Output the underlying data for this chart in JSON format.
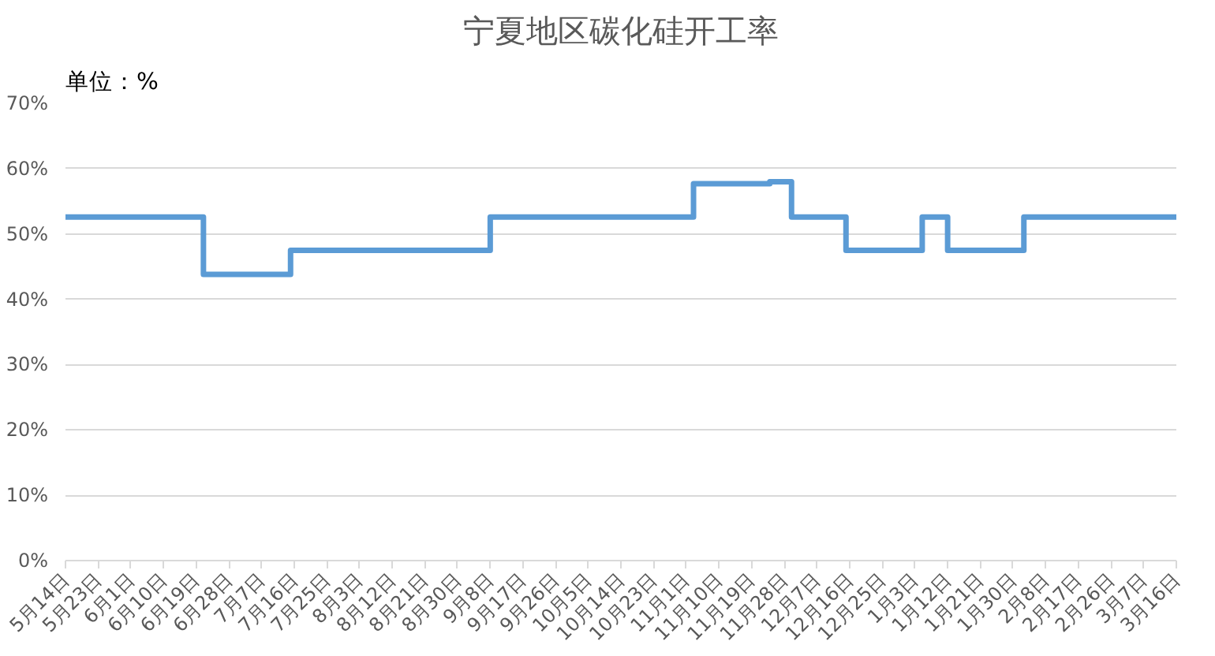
{
  "chart_data": {
    "type": "step",
    "title": "宁夏地区碳化硅开工率",
    "annotations": [
      "单位：%"
    ],
    "categories": [
      "5月14日",
      null,
      null,
      null,
      null,
      null,
      null,
      null,
      null,
      "5月23日",
      null,
      null,
      null,
      null,
      null,
      null,
      null,
      null,
      "6月1日",
      null,
      null,
      null,
      null,
      null,
      null,
      null,
      null,
      "6月10日",
      null,
      null,
      null,
      null,
      null,
      null,
      null,
      null,
      "6月19日",
      null,
      null,
      null,
      null,
      null,
      null,
      null,
      null,
      "6月28日",
      null,
      null,
      null,
      null,
      null,
      null,
      null,
      null,
      "7月7日",
      null,
      null,
      null,
      null,
      null,
      null,
      null,
      null,
      "7月16日",
      null,
      null,
      null,
      null,
      null,
      null,
      null,
      null,
      "7月25日",
      null,
      null,
      null,
      null,
      null,
      null,
      null,
      null,
      "8月3日",
      null,
      null,
      null,
      null,
      null,
      null,
      null,
      null,
      "8月12日",
      null,
      null,
      null,
      null,
      null,
      null,
      null,
      null,
      "8月21日",
      null,
      null,
      null,
      null,
      null,
      null,
      null,
      null,
      "8月30日",
      null,
      null,
      null,
      null,
      null,
      null,
      null,
      null,
      "9月8日",
      null,
      null,
      null,
      null,
      null,
      null,
      null,
      null,
      "9月17日",
      null,
      null,
      null,
      null,
      null,
      null,
      null,
      null,
      "9月26日",
      null,
      null,
      null,
      null,
      null,
      null,
      null,
      null,
      "10月5日",
      null,
      null,
      null,
      null,
      null,
      null,
      null,
      null,
      "10月14日",
      null,
      null,
      null,
      null,
      null,
      null,
      null,
      null,
      "10月23日",
      null,
      null,
      null,
      null,
      null,
      null,
      null,
      null,
      "11月1日",
      null,
      null,
      null,
      null,
      null,
      null,
      null,
      null,
      "11月10日",
      null,
      null,
      null,
      null,
      null,
      null,
      null,
      null,
      "11月19日",
      null,
      null,
      null,
      null,
      null,
      null,
      null,
      null,
      "11月28日",
      null,
      null,
      null,
      null,
      null,
      null,
      null,
      null,
      "12月7日",
      null,
      null,
      null,
      null,
      null,
      null,
      null,
      null,
      "12月16日",
      null,
      null,
      null,
      null,
      null,
      null,
      null,
      null,
      "12月25日",
      null,
      null,
      null,
      null,
      null,
      null,
      null,
      null,
      "1月3日",
      null,
      null,
      null,
      null,
      null,
      null,
      null,
      null,
      "1月12日",
      null,
      null,
      null,
      null,
      null,
      null,
      null,
      null,
      "1月21日",
      null,
      null,
      null,
      null,
      null,
      null,
      null,
      null,
      "1月30日",
      null,
      null,
      null,
      null,
      null,
      null,
      null,
      null,
      "2月8日",
      null,
      null,
      null,
      null,
      null,
      null,
      null,
      null,
      "2月17日",
      null,
      null,
      null,
      null,
      null,
      null,
      null,
      null,
      "2月26日",
      null,
      null,
      null,
      null,
      null,
      null,
      null,
      null,
      "3月7日",
      null,
      null,
      null,
      null,
      null,
      null,
      null,
      null,
      "3月16日"
    ],
    "series": [
      {
        "color": "#5b9bd5",
        "values": [
          52.6,
          52.6,
          52.6,
          52.6,
          52.6,
          52.6,
          52.6,
          52.6,
          52.6,
          52.6,
          52.6,
          52.6,
          52.6,
          52.6,
          52.6,
          52.6,
          52.6,
          52.6,
          52.6,
          52.6,
          52.6,
          52.6,
          52.6,
          52.6,
          52.6,
          52.6,
          52.6,
          52.6,
          52.6,
          52.6,
          52.6,
          52.6,
          52.6,
          52.6,
          52.6,
          52.6,
          52.6,
          52.6,
          43.8,
          43.8,
          43.8,
          43.8,
          43.8,
          43.8,
          43.8,
          43.8,
          43.8,
          43.8,
          43.8,
          43.8,
          43.8,
          43.8,
          43.8,
          43.8,
          43.8,
          43.8,
          43.8,
          43.8,
          43.8,
          43.8,
          43.8,
          43.8,
          47.5,
          47.5,
          47.5,
          47.5,
          47.5,
          47.5,
          47.5,
          47.5,
          47.5,
          47.5,
          47.5,
          47.5,
          47.5,
          47.5,
          47.5,
          47.5,
          47.5,
          47.5,
          47.5,
          47.5,
          47.5,
          47.5,
          47.5,
          47.5,
          47.5,
          47.5,
          47.5,
          47.5,
          47.5,
          47.5,
          47.5,
          47.5,
          47.5,
          47.5,
          47.5,
          47.5,
          47.5,
          47.5,
          47.5,
          47.5,
          47.5,
          47.5,
          47.5,
          47.5,
          47.5,
          47.5,
          47.5,
          47.5,
          47.5,
          47.5,
          47.5,
          47.5,
          47.5,
          47.5,
          47.5,
          52.6,
          52.6,
          52.6,
          52.6,
          52.6,
          52.6,
          52.6,
          52.6,
          52.6,
          52.6,
          52.6,
          52.6,
          52.6,
          52.6,
          52.6,
          52.6,
          52.6,
          52.6,
          52.6,
          52.6,
          52.6,
          52.6,
          52.6,
          52.6,
          52.6,
          52.6,
          52.6,
          52.6,
          52.6,
          52.6,
          52.6,
          52.6,
          52.6,
          52.6,
          52.6,
          52.6,
          52.6,
          52.6,
          52.6,
          52.6,
          52.6,
          52.6,
          52.6,
          52.6,
          52.6,
          52.6,
          52.6,
          52.6,
          52.6,
          52.6,
          52.6,
          52.6,
          52.6,
          52.6,
          52.6,
          52.6,
          57.7,
          57.7,
          57.7,
          57.7,
          57.7,
          57.7,
          57.7,
          57.7,
          57.7,
          57.7,
          57.7,
          57.7,
          57.7,
          57.7,
          57.7,
          57.7,
          57.7,
          57.7,
          57.7,
          57.7,
          57.7,
          58.0,
          58.0,
          58.0,
          58.0,
          58.0,
          58.0,
          52.6,
          52.6,
          52.6,
          52.6,
          52.6,
          52.6,
          52.6,
          52.6,
          52.6,
          52.6,
          52.6,
          52.6,
          52.6,
          52.6,
          52.6,
          47.5,
          47.5,
          47.5,
          47.5,
          47.5,
          47.5,
          47.5,
          47.5,
          47.5,
          47.5,
          47.5,
          47.5,
          47.5,
          47.5,
          47.5,
          47.5,
          47.5,
          47.5,
          47.5,
          47.5,
          47.5,
          52.6,
          52.6,
          52.6,
          52.6,
          52.6,
          52.6,
          52.6,
          47.5,
          47.5,
          47.5,
          47.5,
          47.5,
          47.5,
          47.5,
          47.5,
          47.5,
          47.5,
          47.5,
          47.5,
          47.5,
          47.5,
          47.5,
          47.5,
          47.5,
          47.5,
          47.5,
          47.5,
          47.5,
          52.6,
          52.6,
          52.6,
          52.6,
          52.6,
          52.6,
          52.6,
          52.6,
          52.6,
          52.6,
          52.6,
          52.6,
          52.6,
          52.6,
          52.6,
          52.6,
          52.6,
          52.6,
          52.6,
          52.6,
          52.6,
          52.6,
          52.6,
          52.6,
          52.6,
          52.6,
          52.6,
          52.6,
          52.6,
          52.6,
          52.6,
          52.6,
          52.6,
          52.6,
          52.6,
          52.6,
          52.6,
          52.6,
          52.6,
          52.6,
          52.6,
          52.6,
          52.6
        ]
      }
    ],
    "ylim": [
      0,
      70
    ],
    "yticks": [
      {
        "value": 0,
        "label": "0%"
      },
      {
        "value": 10,
        "label": "10%"
      },
      {
        "value": 20,
        "label": "20%"
      },
      {
        "value": 30,
        "label": "30%"
      },
      {
        "value": 40,
        "label": "40%"
      },
      {
        "value": 50,
        "label": "50%"
      },
      {
        "value": 60,
        "label": "60%"
      },
      {
        "value": 70,
        "label": "70%"
      }
    ],
    "grid": "y",
    "marker": "none",
    "line_style": "solid"
  }
}
